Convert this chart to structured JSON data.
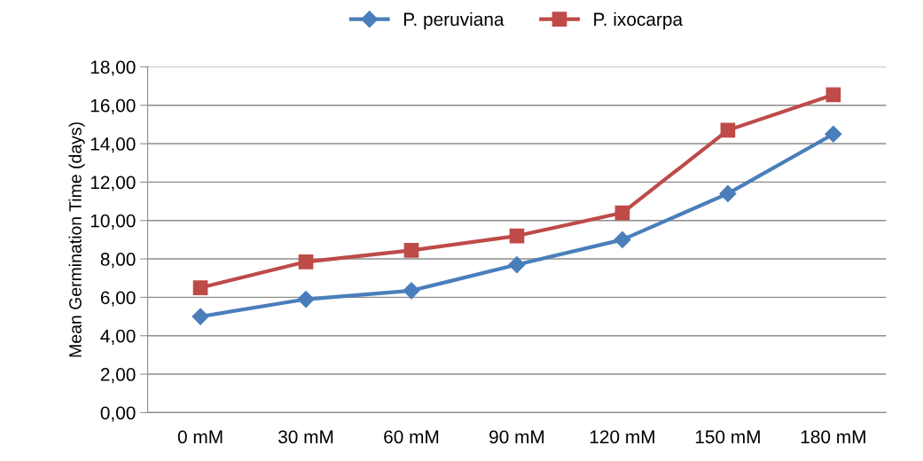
{
  "chart_data": {
    "type": "line",
    "ylabel": "Mean Germination Time (days)",
    "categories": [
      "0 mM",
      "30 mM",
      "60 mM",
      "90 mM",
      "120 mM",
      "150 mM",
      "180 mM"
    ],
    "series": [
      {
        "name": "P. peruviana",
        "color": "#4a7ebb",
        "marker": "diamond",
        "values": [
          5.0,
          5.9,
          6.35,
          7.7,
          9.0,
          11.4,
          14.5
        ]
      },
      {
        "name": "P. ixocarpa",
        "color": "#be4b48",
        "marker": "square",
        "values": [
          6.5,
          7.85,
          8.45,
          9.2,
          10.4,
          14.7,
          16.55
        ]
      }
    ],
    "ylim": [
      0,
      18
    ],
    "yticks": [
      {
        "value": 0,
        "label": "0,00"
      },
      {
        "value": 2,
        "label": "2,00"
      },
      {
        "value": 4,
        "label": "4,00"
      },
      {
        "value": 6,
        "label": "6,00"
      },
      {
        "value": 8,
        "label": "8,00"
      },
      {
        "value": 10,
        "label": "10,00"
      },
      {
        "value": 12,
        "label": "12,00"
      },
      {
        "value": 14,
        "label": "14,00"
      },
      {
        "value": 16,
        "label": "16,00"
      },
      {
        "value": 18,
        "label": "18,00"
      }
    ],
    "grid": "y",
    "legend": "top"
  }
}
